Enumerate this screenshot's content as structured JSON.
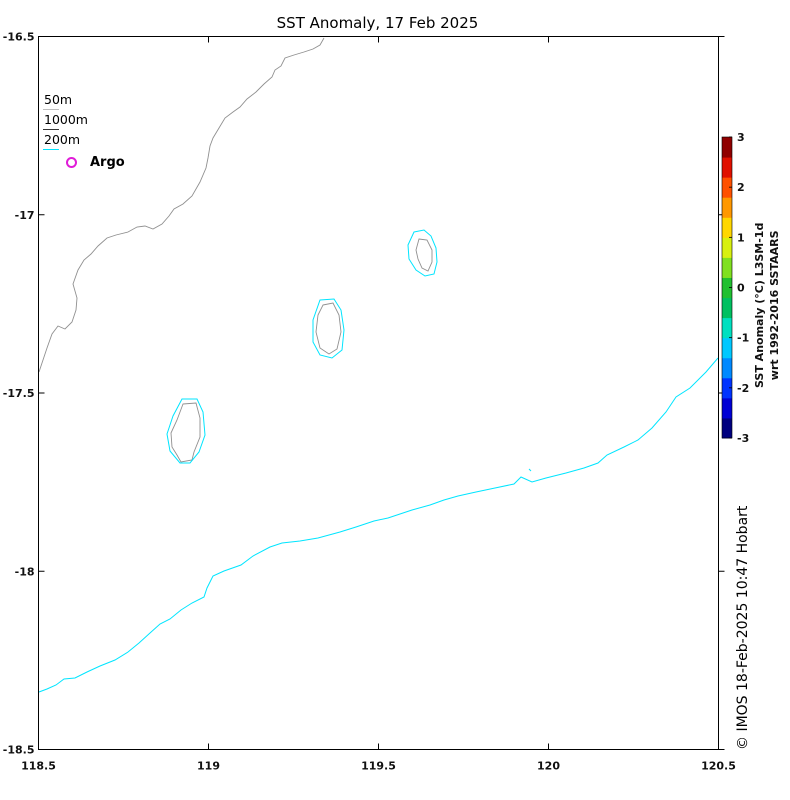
{
  "map": {
    "title": "SST Anomaly, 17 Feb 2025",
    "credit": "© IMOS 18-Feb-2025 10:47 Hobart",
    "lon_ticks": [
      "118.5",
      "119",
      "119.5",
      "120",
      "120.5"
    ],
    "lat_ticks": [
      "-16.5",
      "-17",
      "-17.5",
      "-18",
      "-18.5"
    ],
    "lon_range": [
      118.5,
      120.5
    ],
    "lat_range": [
      -18.5,
      -16.5
    ]
  },
  "legend": {
    "items": [
      {
        "label": "50m",
        "color": "#bdbdbd"
      },
      {
        "label": "1000m",
        "color": "#333333"
      },
      {
        "label": "200m",
        "color": "#00e5ff"
      }
    ],
    "argo": {
      "label": "Argo",
      "color": "#e01cd8"
    }
  },
  "colorbar": {
    "label_line1": "SST Anomaly (°C) L3SM-1d",
    "label_line2": "wrt 1992-2016 SSTAARS",
    "ticks": [
      "3",
      "2",
      "1",
      "0",
      "-1",
      "-2",
      "-3"
    ],
    "range": [
      -3,
      3
    ],
    "colors": [
      "#00007f",
      "#0000d4",
      "#0033ff",
      "#0089ff",
      "#00c8ff",
      "#00e0c0",
      "#00c060",
      "#20c030",
      "#80e020",
      "#d8f010",
      "#ffd700",
      "#ff9800",
      "#ff5000",
      "#e01000",
      "#900000"
    ]
  },
  "coastline_color": "#909090",
  "isobath_color": "#00e5ff"
}
